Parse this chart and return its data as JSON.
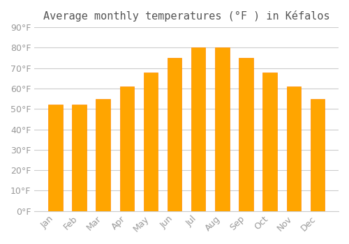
{
  "title": "Average monthly temperatures (°F ) in Kéfalos",
  "months": [
    "Jan",
    "Feb",
    "Mar",
    "Apr",
    "May",
    "Jun",
    "Jul",
    "Aug",
    "Sep",
    "Oct",
    "Nov",
    "Dec"
  ],
  "values": [
    52,
    52,
    55,
    61,
    68,
    75,
    80,
    80,
    75,
    68,
    61,
    55
  ],
  "bar_color": "#FFA500",
  "bar_edge_color": "#FF8C00",
  "background_color": "#FFFFFF",
  "grid_color": "#CCCCCC",
  "ylim": [
    0,
    90
  ],
  "yticks": [
    0,
    10,
    20,
    30,
    40,
    50,
    60,
    70,
    80,
    90
  ],
  "title_fontsize": 11,
  "tick_fontsize": 9,
  "tick_label_color": "#999999",
  "title_color": "#555555"
}
